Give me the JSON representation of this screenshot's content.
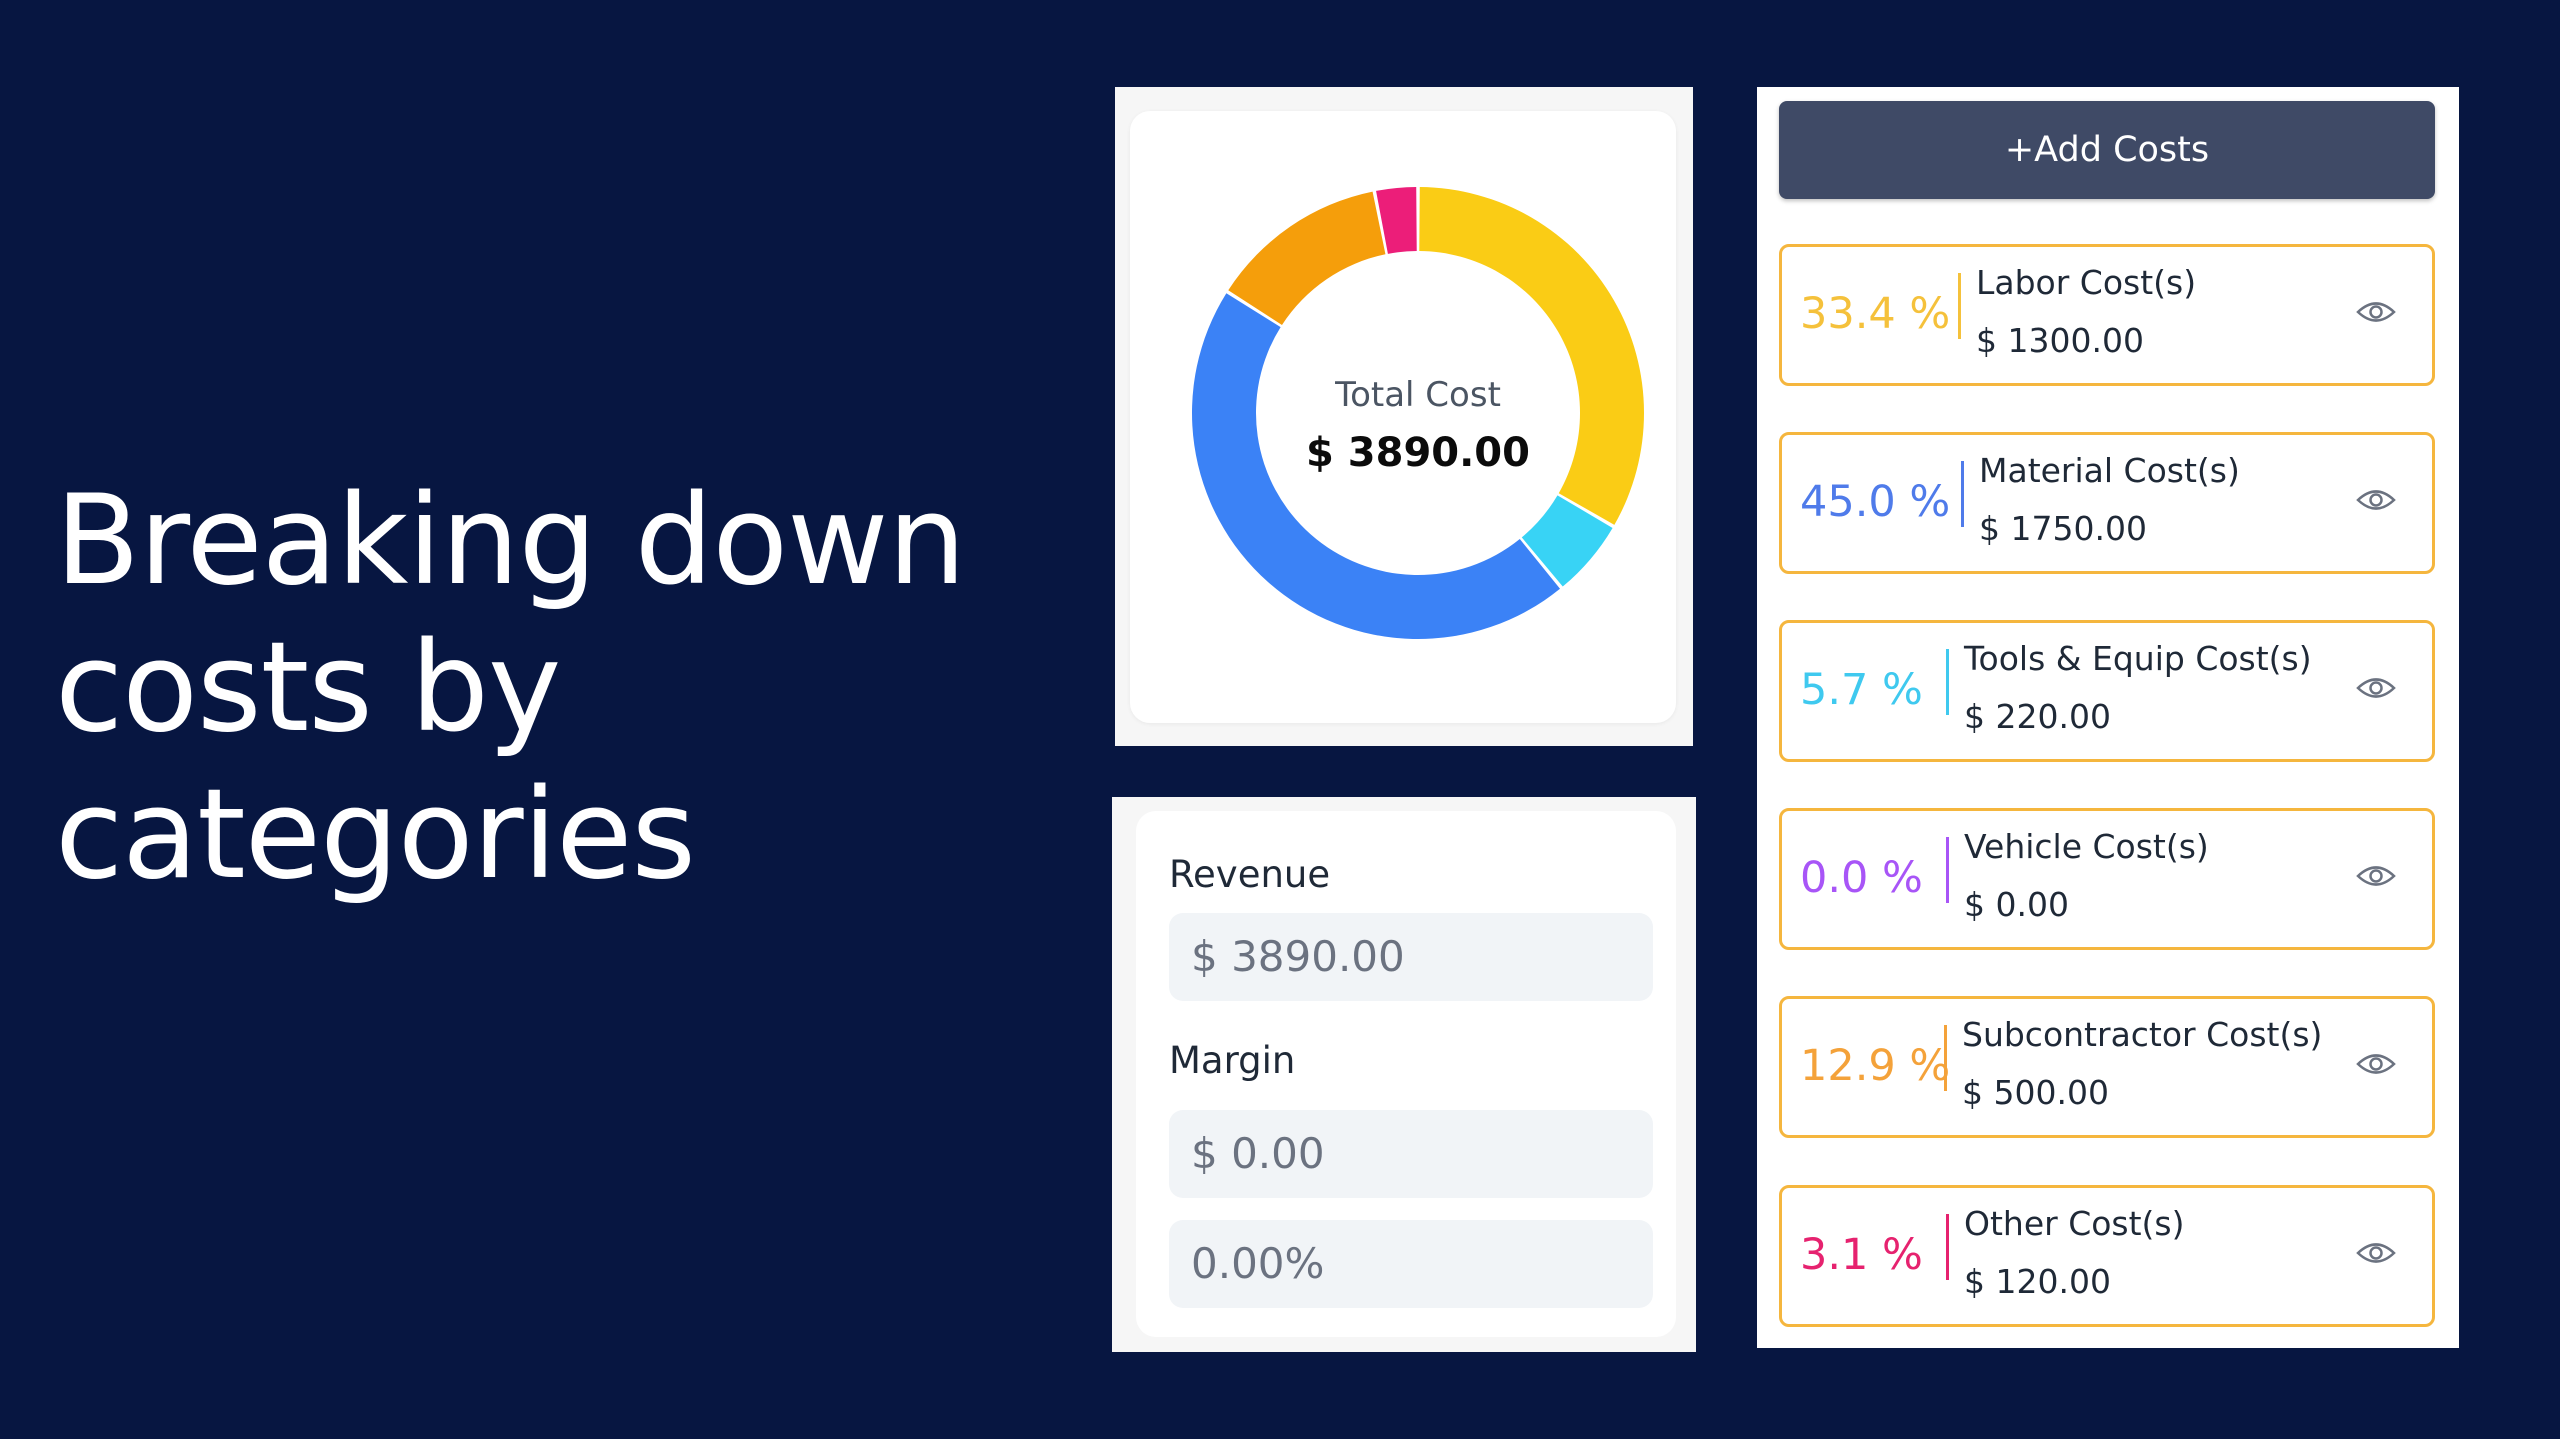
{
  "headline": {
    "line1": "Breaking down",
    "line2": "costs by",
    "line3": "categories"
  },
  "chart_data": {
    "type": "pie",
    "center_label": "Total Cost",
    "center_value": "$ 3890.00",
    "slices": [
      {
        "label": "Labor Cost(s)",
        "value": 33.4,
        "color": "#facc15"
      },
      {
        "label": "Tools & Equip Cost(s)",
        "value": 5.7,
        "color": "#38d3f5"
      },
      {
        "label": "Material Cost(s)",
        "value": 45.0,
        "color": "#3b82f6"
      },
      {
        "label": "Subcontractor Cost(s)",
        "value": 12.9,
        "color": "#f59e0b"
      },
      {
        "label": "Other Cost(s)",
        "value": 3.1,
        "color": "#ec1e79"
      }
    ]
  },
  "revenue": {
    "label": "Revenue",
    "value": "$ 3890.00"
  },
  "margin": {
    "label": "Margin",
    "value": "$ 0.00",
    "percent": "0.00%"
  },
  "add_costs_label": "+Add Costs",
  "costs": [
    {
      "percent": "33.4 %",
      "name": "Labor Cost(s)",
      "amount": "$ 1300.00",
      "color": "#f5c13b"
    },
    {
      "percent": "45.0 %",
      "name": "Material Cost(s)",
      "amount": "$ 1750.00",
      "color": "#4f7bea"
    },
    {
      "percent": "5.7 %",
      "name": "Tools & Equip Cost(s)",
      "amount": "$ 220.00",
      "color": "#3fc9ef"
    },
    {
      "percent": "0.0 %",
      "name": "Vehicle Cost(s)",
      "amount": "$ 0.00",
      "color": "#a855f7"
    },
    {
      "percent": "12.9 %",
      "name": "Subcontractor Cost(s)",
      "amount": "$ 500.00",
      "color": "#f4a23a"
    },
    {
      "percent": "3.1 %",
      "name": "Other Cost(s)",
      "amount": "$ 120.00",
      "color": "#e6226f"
    }
  ]
}
